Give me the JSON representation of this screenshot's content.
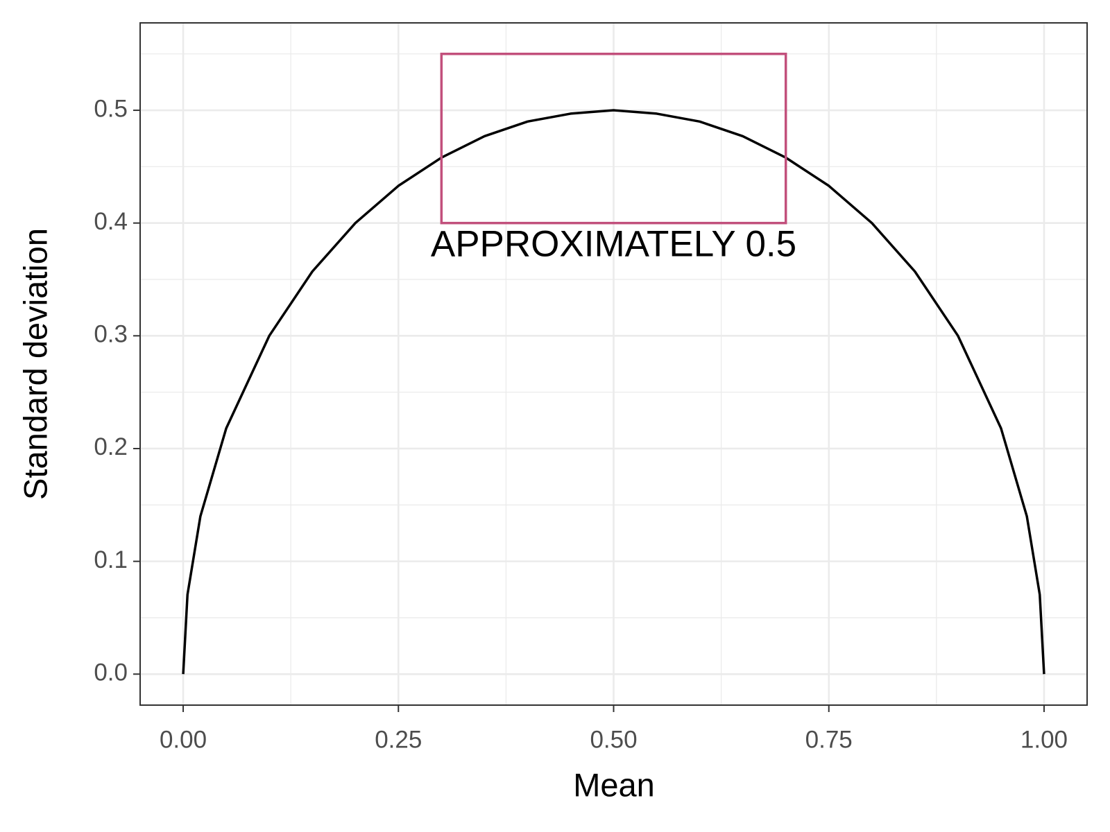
{
  "chart_data": {
    "type": "line",
    "xlabel": "Mean",
    "ylabel": "Standard deviation",
    "x": [
      0,
      0.005,
      0.02,
      0.05,
      0.1,
      0.15,
      0.2,
      0.25,
      0.3,
      0.35,
      0.4,
      0.45,
      0.5,
      0.55,
      0.6,
      0.65,
      0.7,
      0.75,
      0.8,
      0.85,
      0.9,
      0.95,
      0.98,
      0.995,
      1
    ],
    "series": [
      {
        "color": "#000000",
        "values": [
          0,
          0.0705,
          0.14,
          0.218,
          0.3,
          0.357,
          0.4,
          0.433,
          0.458,
          0.477,
          0.49,
          0.497,
          0.5,
          0.497,
          0.49,
          0.477,
          0.458,
          0.433,
          0.4,
          0.357,
          0.3,
          0.218,
          0.14,
          0.0705,
          0
        ]
      }
    ],
    "xlim": [
      -0.05,
      1.05
    ],
    "ylim": [
      -0.0275,
      0.5775
    ],
    "xticks": [
      {
        "value": 0,
        "label": "0.00"
      },
      0.25,
      {
        "value": 0.5,
        "label": "0.50"
      },
      0.75,
      {
        "value": 1,
        "label": "1.00"
      }
    ],
    "yticks": [
      {
        "value": 0,
        "label": "0.0"
      },
      0.1,
      0.2,
      0.3,
      0.4,
      0.5
    ],
    "xminor": [
      0.125,
      0.375,
      0.625,
      0.875
    ],
    "yminor": [
      0.05,
      0.15,
      0.25,
      0.35,
      0.45,
      0.55
    ],
    "grid": true,
    "annotation": {
      "text": "APPROXIMATELY 0.5",
      "color": "#c2507c",
      "xmin": 0.3,
      "xmax": 0.7,
      "ymin": 0.4,
      "ymax": 0.55
    }
  }
}
